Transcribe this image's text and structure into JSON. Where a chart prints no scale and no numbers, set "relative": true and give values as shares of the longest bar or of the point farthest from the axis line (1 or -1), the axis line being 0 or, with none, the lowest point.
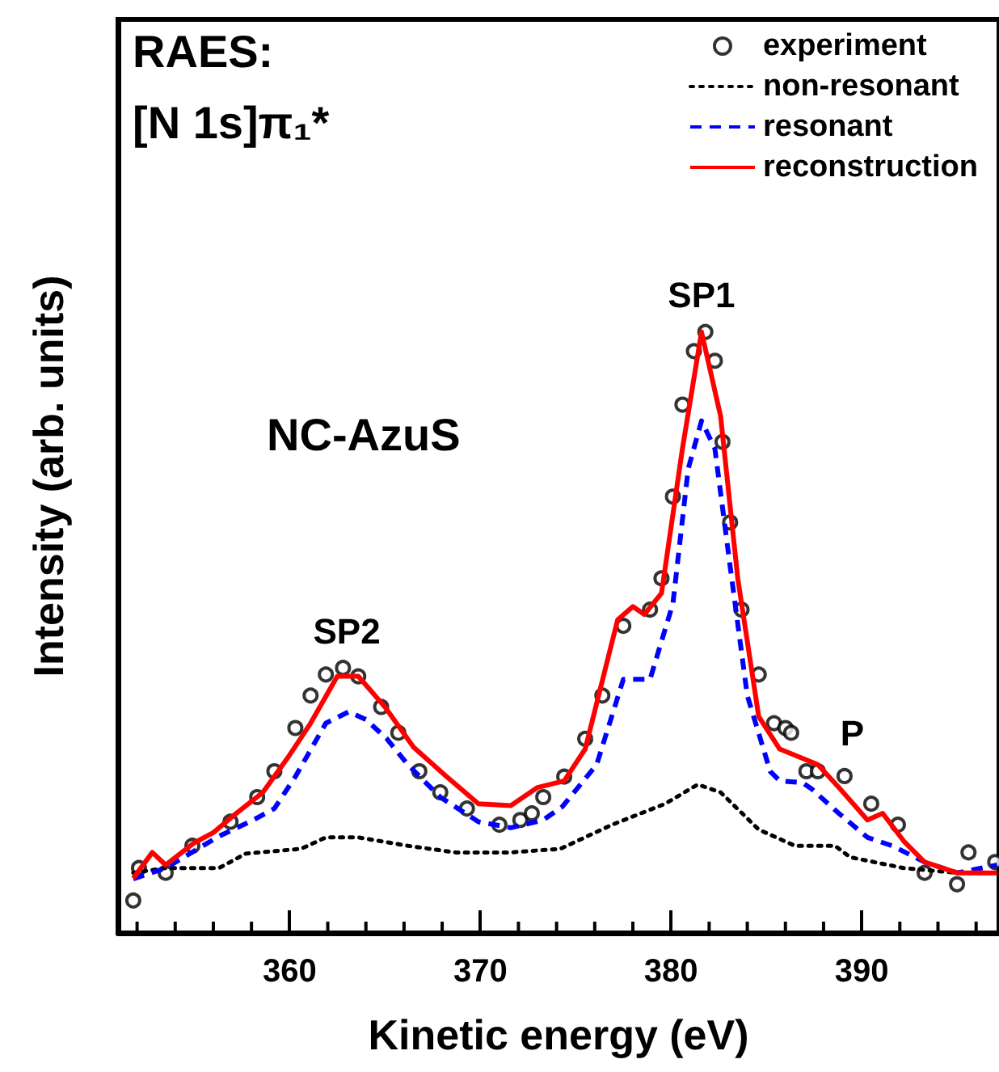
{
  "chart_data": {
    "type": "line",
    "relative": true,
    "xlabel": "Kinetic energy (eV)",
    "ylabel": "Intensity (arb. units)",
    "xlim": [
      351,
      397.2
    ],
    "xticks": [
      {
        "value": 352,
        "label": null
      },
      {
        "value": 354,
        "label": null
      },
      {
        "value": 356,
        "label": null
      },
      {
        "value": 358,
        "label": null
      },
      360,
      {
        "value": 362,
        "label": null
      },
      {
        "value": 364,
        "label": null
      },
      {
        "value": 366,
        "label": null
      },
      {
        "value": 368,
        "label": null
      },
      370,
      {
        "value": 372,
        "label": null
      },
      {
        "value": 374,
        "label": null
      },
      {
        "value": 376,
        "label": null
      },
      {
        "value": 378,
        "label": null
      },
      380,
      {
        "value": 382,
        "label": null
      },
      {
        "value": 384,
        "label": null
      },
      {
        "value": 386,
        "label": null
      },
      {
        "value": 388,
        "label": null
      },
      390,
      {
        "value": 392,
        "label": null
      },
      {
        "value": 394,
        "label": null
      },
      {
        "value": 396,
        "label": null
      }
    ],
    "tick_labels": "x",
    "grid": false,
    "legend": "top right",
    "annotations": [
      "RAES:",
      "[N 1s]π₁*",
      "NC-AzuS",
      {
        "text": "SP1",
        "x": 381.6,
        "y": 1.0
      },
      {
        "text": "SP2",
        "x": 363.0,
        "y": 0.44
      },
      {
        "text": "P",
        "x": 389.5,
        "y": 0.27
      }
    ],
    "series": [
      {
        "name": "experiment",
        "type": "scatter",
        "marker": "circle",
        "color": "#000000",
        "x": [
          351.8,
          352.1,
          353.5,
          354.9,
          356.9,
          358.3,
          359.2,
          360.3,
          361.1,
          361.9,
          362.8,
          363.6,
          364.8,
          365.7,
          366.8,
          367.9,
          369.3,
          371.0,
          372.1,
          372.7,
          373.3,
          374.4,
          375.5,
          376.4,
          377.5,
          378.9,
          379.5,
          380.1,
          380.6,
          381.2,
          381.8,
          382.3,
          382.7,
          383.1,
          383.7,
          384.6,
          385.4,
          386.0,
          386.3,
          387.1,
          387.7,
          389.1,
          390.5,
          391.9,
          393.3,
          395.0,
          395.6,
          397.0
        ],
        "values": [
          0.054,
          0.108,
          0.1,
          0.145,
          0.185,
          0.226,
          0.269,
          0.341,
          0.395,
          0.43,
          0.441,
          0.427,
          0.376,
          0.333,
          0.269,
          0.234,
          0.207,
          0.18,
          0.188,
          0.199,
          0.226,
          0.26,
          0.323,
          0.395,
          0.511,
          0.538,
          0.59,
          0.726,
          0.879,
          0.968,
          1.0,
          0.952,
          0.817,
          0.683,
          0.538,
          0.43,
          0.349,
          0.341,
          0.333,
          0.269,
          0.269,
          0.261,
          0.215,
          0.18,
          0.1,
          0.081,
          0.134,
          0.118
        ]
      },
      {
        "name": "non-resonant",
        "type": "line",
        "marker": "none",
        "line_style": "dotted",
        "color": "#000000",
        "x": [
          351.8,
          353.5,
          356.3,
          357.7,
          360.6,
          361.9,
          363.6,
          366.2,
          368.7,
          371.6,
          374.2,
          376.9,
          379.7,
          381.4,
          382.6,
          384.6,
          386.5,
          388.6,
          389.4,
          392.2,
          395.0,
          397.0
        ],
        "values": [
          0.1,
          0.108,
          0.108,
          0.132,
          0.14,
          0.159,
          0.159,
          0.145,
          0.134,
          0.134,
          0.14,
          0.18,
          0.215,
          0.247,
          0.234,
          0.172,
          0.145,
          0.145,
          0.126,
          0.108,
          0.1,
          0.1
        ]
      },
      {
        "name": "resonant",
        "type": "line",
        "marker": "none",
        "line_style": "dashed",
        "color": "#0000ff",
        "x": [
          351.8,
          353.5,
          356.3,
          358.1,
          359.2,
          360.3,
          361.9,
          363.1,
          364.0,
          365.1,
          366.2,
          367.9,
          369.9,
          371.6,
          373.3,
          374.3,
          376.1,
          377.5,
          378.9,
          380.1,
          380.9,
          381.6,
          382.3,
          383.1,
          384.0,
          385.2,
          385.7,
          386.9,
          387.4,
          388.8,
          390.3,
          391.6,
          393.3,
          395.0,
          397.1
        ],
        "values": [
          0.09,
          0.108,
          0.161,
          0.188,
          0.207,
          0.26,
          0.349,
          0.368,
          0.355,
          0.323,
          0.28,
          0.226,
          0.185,
          0.175,
          0.188,
          0.21,
          0.28,
          0.422,
          0.422,
          0.548,
          0.772,
          0.852,
          0.806,
          0.61,
          0.395,
          0.269,
          0.253,
          0.25,
          0.239,
          0.199,
          0.159,
          0.145,
          0.118,
          0.1,
          0.113
        ]
      },
      {
        "name": "reconstruction",
        "type": "line",
        "marker": "none",
        "line_style": "solid",
        "color": "#ff0000",
        "x": [
          351.8,
          352.8,
          353.5,
          355.0,
          356.0,
          357.2,
          358.6,
          360.0,
          361.1,
          362.5,
          363.6,
          365.0,
          366.5,
          368.2,
          369.9,
          371.6,
          373.0,
          374.4,
          375.5,
          377.2,
          378.0,
          378.6,
          379.5,
          380.6,
          381.6,
          382.6,
          383.5,
          384.6,
          385.7,
          387.7,
          388.8,
          390.3,
          391.1,
          392.2,
          393.3,
          395.0,
          397.1
        ],
        "values": [
          0.091,
          0.134,
          0.113,
          0.15,
          0.167,
          0.199,
          0.234,
          0.296,
          0.349,
          0.427,
          0.427,
          0.376,
          0.309,
          0.261,
          0.215,
          0.212,
          0.242,
          0.253,
          0.306,
          0.521,
          0.543,
          0.53,
          0.565,
          0.806,
          1.0,
          0.86,
          0.59,
          0.36,
          0.306,
          0.28,
          0.242,
          0.188,
          0.199,
          0.153,
          0.118,
          0.1,
          0.1
        ]
      }
    ]
  }
}
